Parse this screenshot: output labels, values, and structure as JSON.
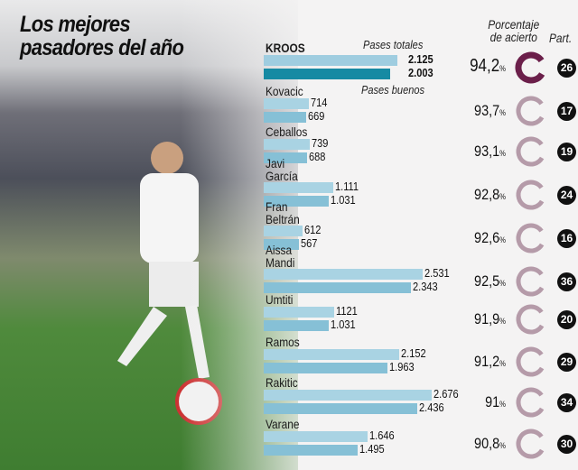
{
  "title_line1": "Los mejores",
  "title_line2": "pasadores del año",
  "chart_data": {
    "type": "bar",
    "legend": {
      "total": "Pases totales",
      "good": "Pases buenos"
    },
    "pct_header_1": "Porcentaje",
    "pct_header_2": "de acierto",
    "matches_header": "Part.",
    "colors": {
      "total": "#a9d3e3",
      "good": "#86c0d6",
      "kroos_total": "#9fcde0",
      "kroos_good": "#168aa3",
      "ring_highlight": "#6b1f4a",
      "ring": "#b59ba9"
    },
    "players": [
      {
        "name1": "KROOS",
        "name2": "",
        "total": 2125,
        "good": 2003,
        "total_label": "2.125",
        "good_label": "2.003",
        "pct": "94,2",
        "matches": "26"
      },
      {
        "name1": "Kovacic",
        "name2": "",
        "total": 714,
        "good": 669,
        "total_label": "714",
        "good_label": "669",
        "pct": "93,7",
        "matches": "17"
      },
      {
        "name1": "Ceballos",
        "name2": "",
        "total": 739,
        "good": 688,
        "total_label": "739",
        "good_label": "688",
        "pct": "93,1",
        "matches": "19"
      },
      {
        "name1": "Javi",
        "name2": "García",
        "total": 1111,
        "good": 1031,
        "total_label": "1.111",
        "good_label": "1.031",
        "pct": "92,8",
        "matches": "24"
      },
      {
        "name1": "Fran",
        "name2": "Beltrán",
        "total": 612,
        "good": 567,
        "total_label": "612",
        "good_label": "567",
        "pct": "92,6",
        "matches": "16"
      },
      {
        "name1": "Aissa",
        "name2": "Mandi",
        "total": 2531,
        "good": 2343,
        "total_label": "2.531",
        "good_label": "2.343",
        "pct": "92,5",
        "matches": "36"
      },
      {
        "name1": "Umtiti",
        "name2": "",
        "total": 1121,
        "good": 1031,
        "total_label": "1121",
        "good_label": "1.031",
        "pct": "91,9",
        "matches": "20"
      },
      {
        "name1": "Ramos",
        "name2": "",
        "total": 2152,
        "good": 1963,
        "total_label": "2.152",
        "good_label": "1.963",
        "pct": "91,2",
        "matches": "29"
      },
      {
        "name1": "Rakitic",
        "name2": "",
        "total": 2676,
        "good": 2436,
        "total_label": "2.676",
        "good_label": "2.436",
        "pct": "91",
        "matches": "34"
      },
      {
        "name1": "Varane",
        "name2": "",
        "total": 1646,
        "good": 1495,
        "total_label": "1.646",
        "good_label": "1.495",
        "pct": "90,8",
        "matches": "30"
      }
    ],
    "pct_unit": "%"
  }
}
